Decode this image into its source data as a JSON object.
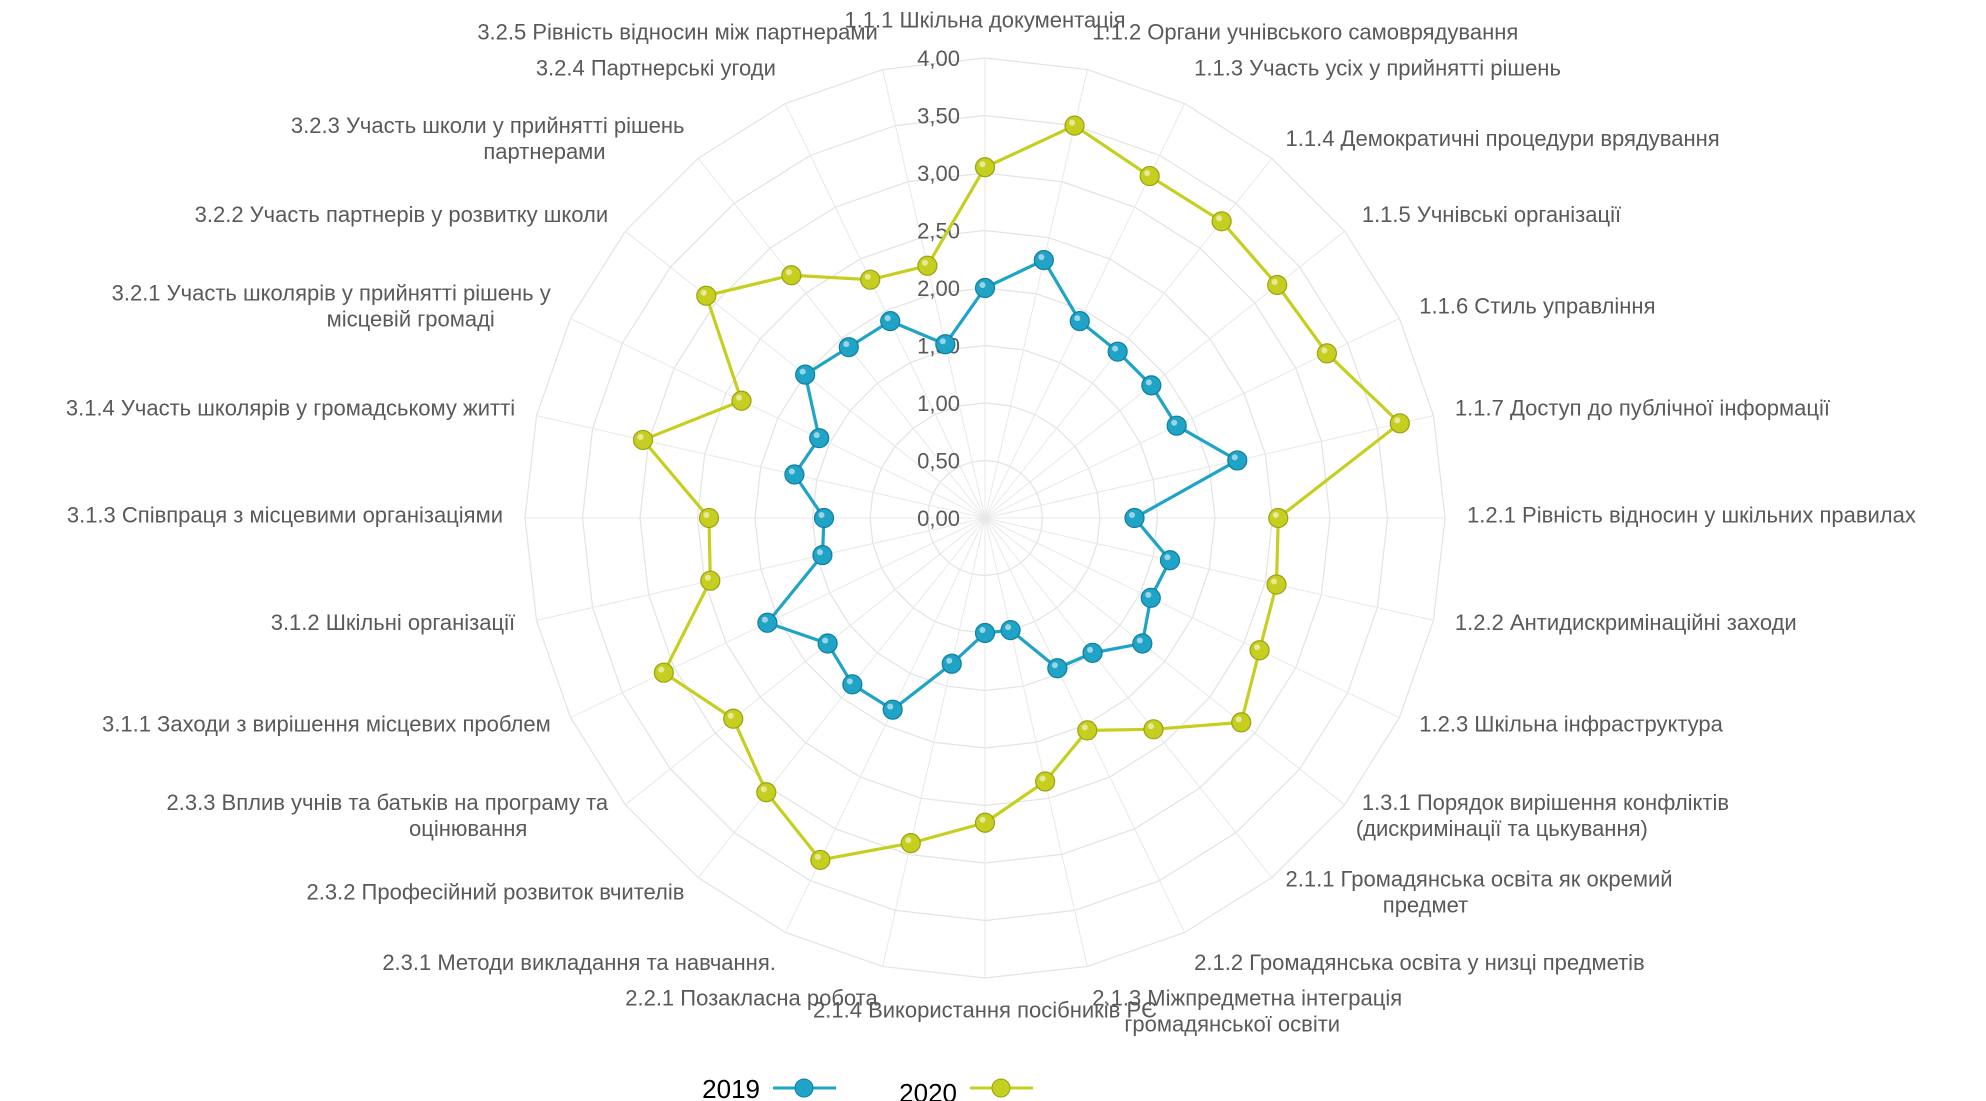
{
  "chart_data": {
    "type": "radar",
    "title": "",
    "categories": [
      "1.1.1 Шкільна документація",
      "1.1.2 Органи учнівського самоврядування",
      "1.1.3 Участь усіх у прийнятті рішень",
      "1.1.4 Демократичні процедури врядування",
      "1.1.5 Учнівські організації",
      "1.1.6 Стиль управління",
      "1.1.7 Доступ до публічної інформації",
      "1.2.1 Рівність відносин у шкільних правилах",
      "1.2.2 Антидискримінаційні заходи",
      "1.2.3 Шкільна інфраструктура",
      "1.3.1 Порядок вирішення конфліктів (дискримінації та цькування)",
      "2.1.1 Громадянська освіта як окремий предмет",
      "2.1.2 Громадянська освіта у низці предметів",
      "2.1.3 Міжпредметна інтеграція громадянської освіти",
      "2.1.4 Використання посібників РЄ",
      "2.2.1 Позакласна робота",
      "2.3.1 Методи викладання та навчання.",
      "2.3.2 Професійний розвиток вчителів",
      "2.3.3 Вплив учнів та батьків на програму та оцінювання",
      "3.1.1 Заходи з вирішення місцевих проблем",
      "3.1.2 Шкільні організації",
      "3.1.3 Співпраця з місцевими організаціями",
      "3.1.4 Участь школярів у громадському житті",
      "3.2.1 Участь школярів у прийнятті рішень у місцевій громаді",
      "3.2.2 Участь партнерів у розвитку школи",
      "3.2.3 Участь школи у прийнятті рішень партнерами",
      "3.2.4 Партнерські угоди",
      "3.2.5 Рівність відносин між партнерами"
    ],
    "category_lines": [
      [
        "1.1.1 Шкільна документація"
      ],
      [
        "1.1.2 Органи учнівського самоврядування"
      ],
      [
        "1.1.3 Участь усіх у прийнятті рішень"
      ],
      [
        "1.1.4 Демократичні процедури врядування"
      ],
      [
        "1.1.5 Учнівські організації"
      ],
      [
        "1.1.6 Стиль управління"
      ],
      [
        "1.1.7 Доступ до публічної інформації"
      ],
      [
        "1.2.1 Рівність відносин у шкільних правилах"
      ],
      [
        "1.2.2 Антидискримінаційні заходи"
      ],
      [
        "1.2.3 Шкільна інфраструктура"
      ],
      [
        "1.3.1 Порядок вирішення конфліктів",
        "(дискримінації та цькування)"
      ],
      [
        "2.1.1 Громадянська освіта як окремий",
        "предмет"
      ],
      [
        "2.1.2 Громадянська освіта у низці предметів"
      ],
      [
        "2.1.3 Міжпредметна інтеграція",
        "громадянської освіти"
      ],
      [
        "2.1.4 Використання посібників РЄ"
      ],
      [
        "2.2.1 Позакласна робота"
      ],
      [
        "2.3.1 Методи викладання та навчання."
      ],
      [
        "2.3.2 Професійний розвиток вчителів"
      ],
      [
        "2.3.3 Вплив учнів та батьків на програму та",
        "оцінювання"
      ],
      [
        "3.1.1 Заходи з вирішення місцевих проблем"
      ],
      [
        "3.1.2 Шкільні організації"
      ],
      [
        "3.1.3 Співпраця з місцевими організаціями"
      ],
      [
        "3.1.4 Участь школярів у громадському житті"
      ],
      [
        "3.2.1 Участь школярів у прийнятті рішень у",
        "місцевій громаді"
      ],
      [
        "3.2.2 Участь партнерів у розвитку школи"
      ],
      [
        "3.2.3 Участь школи у прийнятті рішень",
        "партнерами"
      ],
      [
        "3.2.4 Партнерські угоди"
      ],
      [
        "3.2.5 Рівність відносин між партнерами"
      ]
    ],
    "radial_ticks": [
      "0,00",
      "0,50",
      "1,00",
      "1,50",
      "2,00",
      "2,50",
      "3,00",
      "3,50",
      "4,00"
    ],
    "rlim": [
      0,
      4
    ],
    "grid": true,
    "legend_position": "bottom",
    "series": [
      {
        "name": "2019",
        "color": "#1fa3c6",
        "values": [
          2.0,
          2.3,
          1.9,
          1.85,
          1.85,
          1.85,
          2.25,
          1.3,
          1.65,
          1.6,
          1.75,
          1.5,
          1.45,
          1.0,
          1.0,
          1.3,
          1.85,
          1.85,
          1.75,
          2.1,
          1.45,
          1.4,
          1.7,
          1.6,
          2.0,
          1.9,
          1.9,
          1.55
        ]
      },
      {
        "name": "2020",
        "color": "#c6cf1f",
        "values": [
          3.05,
          3.5,
          3.3,
          3.3,
          3.25,
          3.3,
          3.7,
          2.55,
          2.6,
          2.65,
          2.85,
          2.35,
          2.05,
          2.35,
          2.65,
          2.9,
          3.3,
          3.05,
          2.8,
          3.1,
          2.45,
          2.4,
          3.05,
          2.35,
          3.1,
          2.7,
          2.3,
          2.25
        ]
      }
    ]
  }
}
